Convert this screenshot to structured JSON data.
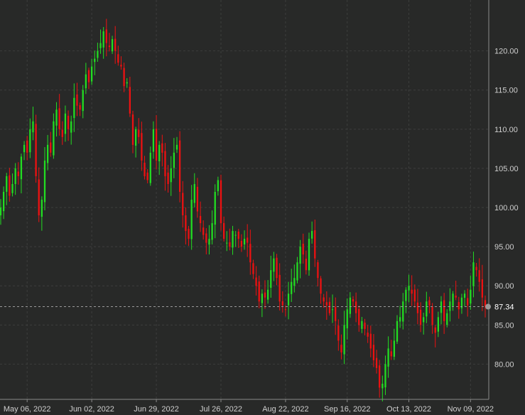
{
  "chart_data": {
    "type": "candlestick",
    "title": "",
    "xlabel": "",
    "ylabel": "",
    "ylim": [
      75.5,
      126.5
    ],
    "grid": true,
    "up_color": "#22dd22",
    "down_color": "#ee1111",
    "background": "#282928",
    "current_price": 87.34,
    "current_price_label": "87.34",
    "y_ticks": [
      {
        "value": 80,
        "label": "80.00"
      },
      {
        "value": 85,
        "label": "85.00"
      },
      {
        "value": 90,
        "label": "90.00"
      },
      {
        "value": 95,
        "label": "95.00"
      },
      {
        "value": 100,
        "label": "100.00"
      },
      {
        "value": 105,
        "label": "105.00"
      },
      {
        "value": 110,
        "label": "110.00"
      },
      {
        "value": 115,
        "label": "115.00"
      },
      {
        "value": 120,
        "label": "120.00"
      }
    ],
    "x_ticks": [
      {
        "index": 9,
        "label": "May 06, 2022"
      },
      {
        "index": 31,
        "label": "Jun 02, 2022"
      },
      {
        "index": 53,
        "label": "Jun 29, 2022"
      },
      {
        "index": 75,
        "label": "Jul 26, 2022"
      },
      {
        "index": 97,
        "label": "Aug 22, 2022"
      },
      {
        "index": 118,
        "label": "Sep 16, 2022"
      },
      {
        "index": 139,
        "label": "Oct 13, 2022"
      },
      {
        "index": 160,
        "label": "Nov 09, 2022"
      }
    ],
    "close_series": [
      100.0,
      102.0,
      104.0,
      101.5,
      103.0,
      105.0,
      104.0,
      106.5,
      108.0,
      107.0,
      110.0,
      111.0,
      104.0,
      99.0,
      101.0,
      106.0,
      108.0,
      107.0,
      111.0,
      112.5,
      110.0,
      109.0,
      112.0,
      110.0,
      111.0,
      114.0,
      113.0,
      112.5,
      115.0,
      117.0,
      116.0,
      118.0,
      119.0,
      120.0,
      121.0,
      122.5,
      121.0,
      120.5,
      121.5,
      120.0,
      118.5,
      118.0,
      115.5,
      116.0,
      112.0,
      108.0,
      110.0,
      109.0,
      106.0,
      104.0,
      103.5,
      107.0,
      110.0,
      106.0,
      108.0,
      107.0,
      104.0,
      103.0,
      105.0,
      107.0,
      108.0,
      102.0,
      99.0,
      97.0,
      96.0,
      101.0,
      103.0,
      99.5,
      98.0,
      96.5,
      95.5,
      96.0,
      98.0,
      102.0,
      103.5,
      98.0,
      96.0,
      95.5,
      95.0,
      97.0,
      96.5,
      96.0,
      95.0,
      96.0,
      95.5,
      93.0,
      91.5,
      90.0,
      88.0,
      89.0,
      88.5,
      89.5,
      92.0,
      93.5,
      91.0,
      88.0,
      87.5,
      87.0,
      89.0,
      90.5,
      91.0,
      93.0,
      95.0,
      94.0,
      92.0,
      96.0,
      97.0,
      93.5,
      91.0,
      89.0,
      88.0,
      87.5,
      86.5,
      87.0,
      85.5,
      83.0,
      81.5,
      85.0,
      87.0,
      88.5,
      88.0,
      86.5,
      85.0,
      85.5,
      84.5,
      83.5,
      82.0,
      80.5,
      79.5,
      77.0,
      77.5,
      80.0,
      82.0,
      81.0,
      83.0,
      85.5,
      86.0,
      88.0,
      89.5,
      90.0,
      89.0,
      88.0,
      86.5,
      85.0,
      86.0,
      88.0,
      87.5,
      85.0,
      84.0,
      86.0,
      88.0,
      85.5,
      86.5,
      88.0,
      89.0,
      88.5,
      87.0,
      88.5,
      89.0,
      87.5,
      89.5,
      93.0,
      92.0,
      90.5,
      88.5,
      87.34
    ]
  }
}
